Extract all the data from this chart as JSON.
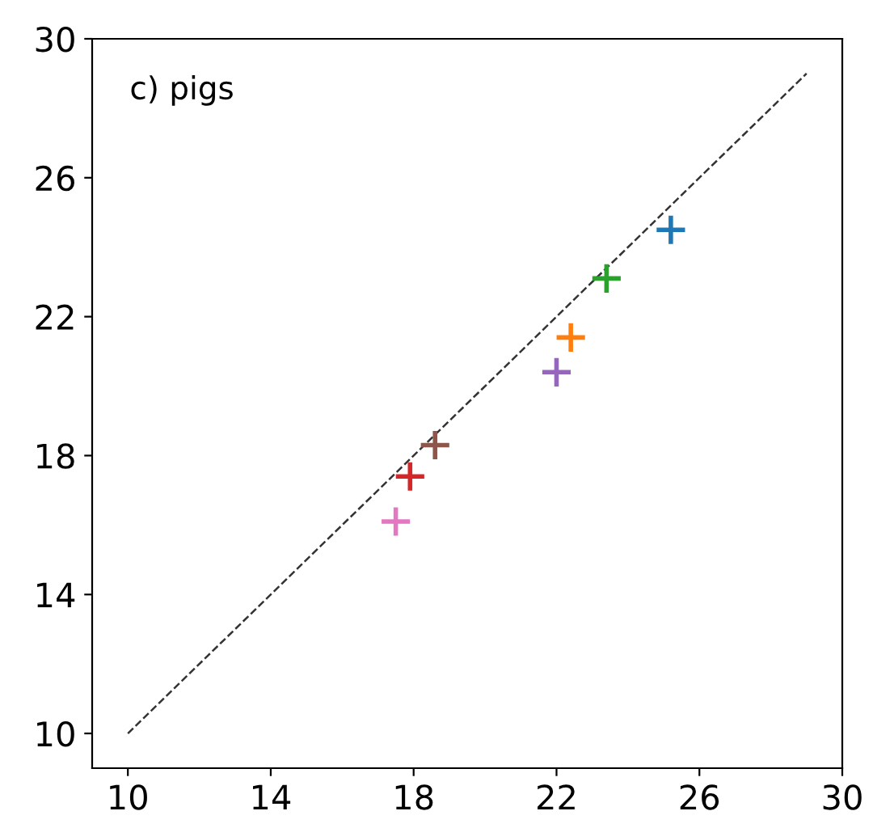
{
  "chart_data": {
    "type": "scatter",
    "marker": "cross",
    "grid": false,
    "legend": false,
    "annotations": [
      "c) pigs"
    ],
    "xlim": [
      9,
      30
    ],
    "ylim": [
      9,
      30
    ],
    "xticks": [
      10,
      14,
      18,
      22,
      26,
      30
    ],
    "yticks": [
      10,
      14,
      18,
      22,
      26,
      30
    ],
    "series": [
      {
        "color": "#1f77b4",
        "x": [
          25.2
        ],
        "values": [
          24.5
        ]
      },
      {
        "color": "#ff7f0e",
        "x": [
          22.4
        ],
        "values": [
          21.4
        ]
      },
      {
        "color": "#2ca02c",
        "x": [
          23.4
        ],
        "values": [
          23.1
        ]
      },
      {
        "color": "#d62728",
        "x": [
          17.9
        ],
        "values": [
          17.4
        ]
      },
      {
        "color": "#9467bd",
        "x": [
          22.0
        ],
        "values": [
          20.4
        ]
      },
      {
        "color": "#8c564b",
        "x": [
          18.6
        ],
        "values": [
          18.3
        ]
      },
      {
        "color": "#e377c2",
        "x": [
          17.5
        ],
        "values": [
          16.1
        ]
      },
      {
        "type": "line",
        "color": "#333333",
        "line_style": "dashed",
        "marker": "none",
        "x": [
          10,
          29
        ],
        "values": [
          10,
          29
        ]
      }
    ]
  }
}
